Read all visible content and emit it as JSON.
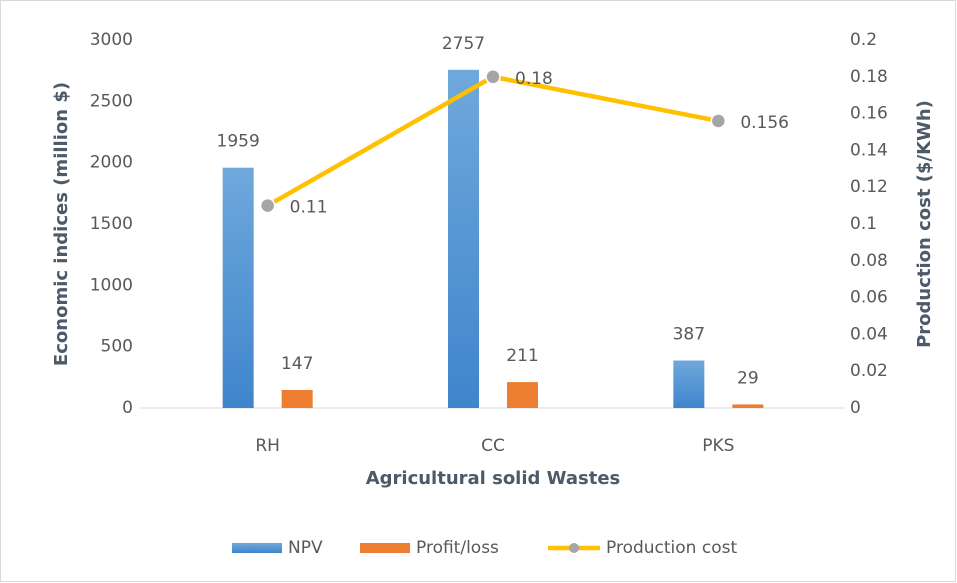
{
  "chart_data": {
    "type": "bar",
    "x_label": "Agricultural solid Wastes",
    "y_label": "Economic indices (million $)",
    "y2_label": "Production cost ($/KWh)",
    "categories": [
      "RH",
      "CC",
      "PKS"
    ],
    "series": [
      {
        "name": "NPV",
        "type": "bar",
        "color": "#5b9bd5",
        "values": [
          1959,
          2757,
          387
        ]
      },
      {
        "name": "Profit/loss",
        "type": "bar",
        "color": "#ed7d31",
        "values": [
          147,
          211,
          29
        ]
      },
      {
        "name": "Production cost",
        "type": "line",
        "axis": "y2",
        "color": "#ffc000",
        "marker_color": "#a5a5a5",
        "values": [
          0.11,
          0.18,
          0.156
        ]
      }
    ],
    "ylim": [
      0,
      3000
    ],
    "yticks": [
      0,
      500,
      1000,
      1500,
      2000,
      2500,
      3000
    ],
    "y2lim": [
      0,
      0.2
    ],
    "y2ticks": [
      0,
      0.02,
      0.04,
      0.06,
      0.08,
      0.1,
      0.12,
      0.14,
      0.16,
      0.18,
      0.2
    ],
    "grid": false,
    "legend": "bottom"
  }
}
